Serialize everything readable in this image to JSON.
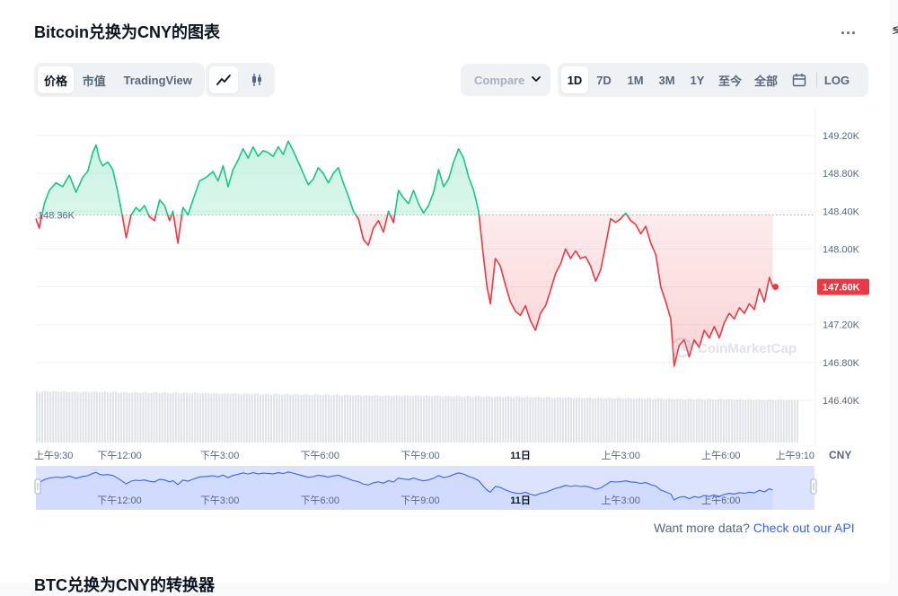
{
  "header": {
    "title": "Bitcoin兑换为CNY的图表",
    "more_label": "...",
    "edge_glyph": "≶"
  },
  "toolbar": {
    "view_tabs": [
      {
        "label": "价格",
        "active": true
      },
      {
        "label": "市值",
        "active": false
      },
      {
        "label": "TradingView",
        "active": false
      }
    ],
    "chart_type_icons": [
      "line-chart-icon",
      "candlestick-icon"
    ],
    "compare_label": "Compare with",
    "range_tabs": [
      {
        "label": "1D",
        "active": true
      },
      {
        "label": "7D",
        "active": false
      },
      {
        "label": "1M",
        "active": false
      },
      {
        "label": "3M",
        "active": false
      },
      {
        "label": "1Y",
        "active": false
      },
      {
        "label": "至今",
        "active": false
      },
      {
        "label": "全部",
        "active": false
      }
    ],
    "calendar_icon": "calendar-icon",
    "log_label": "LOG"
  },
  "chart_data": {
    "type": "line",
    "baseline": 148.36,
    "baseline_label": "148.36K",
    "current_label": "147.60K",
    "currency_label": "CNY",
    "watermark": "CoinMarketCap",
    "ylim": [
      146.0,
      149.4
    ],
    "y_ticks": [
      146.4,
      146.8,
      147.2,
      147.6,
      148.0,
      148.4,
      148.8,
      149.2
    ],
    "y_tick_labels": [
      "146.40K",
      "146.80K",
      "147.20K",
      "147.60K",
      "148.00K",
      "148.40K",
      "148.80K",
      "149.20K"
    ],
    "x_tick_labels": [
      {
        "t": 0,
        "label": "上午9:30"
      },
      {
        "t": 2.5,
        "label": "下午12:00"
      },
      {
        "t": 5.5,
        "label": "下午3:00"
      },
      {
        "t": 8.5,
        "label": "下午6:00"
      },
      {
        "t": 11.5,
        "label": "下午9:00"
      },
      {
        "t": 14.5,
        "label": "11日"
      },
      {
        "t": 17.5,
        "label": "上午3:00"
      },
      {
        "t": 20.5,
        "label": "上午6:00"
      },
      {
        "t": 23.17,
        "label": "上午9:10"
      }
    ],
    "nav_x_labels": [
      {
        "t": 2.5,
        "label": "下午12:00"
      },
      {
        "t": 5.5,
        "label": "下午3:00"
      },
      {
        "t": 8.5,
        "label": "下午6:00"
      },
      {
        "t": 11.5,
        "label": "下午9:00"
      },
      {
        "t": 14.5,
        "label": "11日"
      },
      {
        "t": 17.5,
        "label": "上午3:00"
      },
      {
        "t": 20.5,
        "label": "上午6:00"
      }
    ],
    "x_span_hours": 23.3,
    "colors": {
      "up": "#16c784",
      "down": "#ea3943",
      "volume": "#dfe2e7",
      "nav_line": "#3861fb",
      "nav_fill": "#dbe3fe"
    },
    "points": [
      [
        0.0,
        148.32
      ],
      [
        0.1,
        148.22
      ],
      [
        0.25,
        148.48
      ],
      [
        0.4,
        148.62
      ],
      [
        0.6,
        148.7
      ],
      [
        0.8,
        148.66
      ],
      [
        1.0,
        148.78
      ],
      [
        1.2,
        148.6
      ],
      [
        1.4,
        148.76
      ],
      [
        1.55,
        148.82
      ],
      [
        1.7,
        149.02
      ],
      [
        1.8,
        149.1
      ],
      [
        1.9,
        148.95
      ],
      [
        2.0,
        148.88
      ],
      [
        2.15,
        148.92
      ],
      [
        2.3,
        148.84
      ],
      [
        2.45,
        148.6
      ],
      [
        2.55,
        148.42
      ],
      [
        2.7,
        148.12
      ],
      [
        2.85,
        148.36
      ],
      [
        3.0,
        148.44
      ],
      [
        3.1,
        148.4
      ],
      [
        3.25,
        148.46
      ],
      [
        3.4,
        148.34
      ],
      [
        3.55,
        148.3
      ],
      [
        3.7,
        148.52
      ],
      [
        3.85,
        148.46
      ],
      [
        4.0,
        148.3
      ],
      [
        4.1,
        148.4
      ],
      [
        4.25,
        148.06
      ],
      [
        4.4,
        148.44
      ],
      [
        4.55,
        148.36
      ],
      [
        4.7,
        148.52
      ],
      [
        4.9,
        148.72
      ],
      [
        5.1,
        148.76
      ],
      [
        5.3,
        148.82
      ],
      [
        5.45,
        148.72
      ],
      [
        5.6,
        148.88
      ],
      [
        5.75,
        148.66
      ],
      [
        5.9,
        148.84
      ],
      [
        6.05,
        148.94
      ],
      [
        6.2,
        149.06
      ],
      [
        6.35,
        148.96
      ],
      [
        6.5,
        149.08
      ],
      [
        6.65,
        148.98
      ],
      [
        6.8,
        149.04
      ],
      [
        6.95,
        149.02
      ],
      [
        7.1,
        148.98
      ],
      [
        7.25,
        149.08
      ],
      [
        7.4,
        149.0
      ],
      [
        7.55,
        149.14
      ],
      [
        7.7,
        149.04
      ],
      [
        7.85,
        148.92
      ],
      [
        8.0,
        148.8
      ],
      [
        8.15,
        148.68
      ],
      [
        8.3,
        148.74
      ],
      [
        8.45,
        148.86
      ],
      [
        8.6,
        148.8
      ],
      [
        8.75,
        148.7
      ],
      [
        8.9,
        148.8
      ],
      [
        9.05,
        148.86
      ],
      [
        9.2,
        148.7
      ],
      [
        9.35,
        148.56
      ],
      [
        9.5,
        148.4
      ],
      [
        9.65,
        148.32
      ],
      [
        9.8,
        148.1
      ],
      [
        9.95,
        148.04
      ],
      [
        10.1,
        148.22
      ],
      [
        10.25,
        148.3
      ],
      [
        10.4,
        148.18
      ],
      [
        10.55,
        148.4
      ],
      [
        10.7,
        148.28
      ],
      [
        10.85,
        148.62
      ],
      [
        11.0,
        148.54
      ],
      [
        11.15,
        148.48
      ],
      [
        11.3,
        148.62
      ],
      [
        11.45,
        148.48
      ],
      [
        11.6,
        148.38
      ],
      [
        11.75,
        148.46
      ],
      [
        11.9,
        148.6
      ],
      [
        12.05,
        148.84
      ],
      [
        12.2,
        148.66
      ],
      [
        12.35,
        148.74
      ],
      [
        12.5,
        148.92
      ],
      [
        12.65,
        149.06
      ],
      [
        12.8,
        148.96
      ],
      [
        12.95,
        148.76
      ],
      [
        13.1,
        148.62
      ],
      [
        13.25,
        148.4
      ],
      [
        13.4,
        147.9
      ],
      [
        13.5,
        147.6
      ],
      [
        13.6,
        147.42
      ],
      [
        13.75,
        147.9
      ],
      [
        13.9,
        147.82
      ],
      [
        14.05,
        147.62
      ],
      [
        14.2,
        147.44
      ],
      [
        14.35,
        147.34
      ],
      [
        14.5,
        147.3
      ],
      [
        14.65,
        147.4
      ],
      [
        14.8,
        147.24
      ],
      [
        14.95,
        147.14
      ],
      [
        15.1,
        147.32
      ],
      [
        15.25,
        147.4
      ],
      [
        15.4,
        147.56
      ],
      [
        15.55,
        147.74
      ],
      [
        15.7,
        147.84
      ],
      [
        15.85,
        148.0
      ],
      [
        16.0,
        147.9
      ],
      [
        16.15,
        147.98
      ],
      [
        16.3,
        147.9
      ],
      [
        16.45,
        147.92
      ],
      [
        16.6,
        147.82
      ],
      [
        16.75,
        147.66
      ],
      [
        16.9,
        147.78
      ],
      [
        17.05,
        148.04
      ],
      [
        17.2,
        148.32
      ],
      [
        17.35,
        148.28
      ],
      [
        17.5,
        148.32
      ],
      [
        17.65,
        148.38
      ],
      [
        17.8,
        148.3
      ],
      [
        17.95,
        148.26
      ],
      [
        18.1,
        148.16
      ],
      [
        18.25,
        148.24
      ],
      [
        18.4,
        148.06
      ],
      [
        18.55,
        147.94
      ],
      [
        18.7,
        147.6
      ],
      [
        18.85,
        147.44
      ],
      [
        19.0,
        147.26
      ],
      [
        19.1,
        146.76
      ],
      [
        19.25,
        146.98
      ],
      [
        19.4,
        147.04
      ],
      [
        19.55,
        146.86
      ],
      [
        19.7,
        147.04
      ],
      [
        19.85,
        146.96
      ],
      [
        20.0,
        147.14
      ],
      [
        20.15,
        147.06
      ],
      [
        20.3,
        147.18
      ],
      [
        20.45,
        147.06
      ],
      [
        20.6,
        147.22
      ],
      [
        20.75,
        147.32
      ],
      [
        20.9,
        147.26
      ],
      [
        21.05,
        147.38
      ],
      [
        21.2,
        147.32
      ],
      [
        21.35,
        147.42
      ],
      [
        21.5,
        147.36
      ],
      [
        21.65,
        147.58
      ],
      [
        21.8,
        147.44
      ],
      [
        21.95,
        147.7
      ],
      [
        22.05,
        147.6
      ]
    ]
  },
  "footer": {
    "api_prompt": "Want more data?",
    "api_link": "Check out our API",
    "next_section_title": "BTC兑换为CNY的转换器"
  }
}
